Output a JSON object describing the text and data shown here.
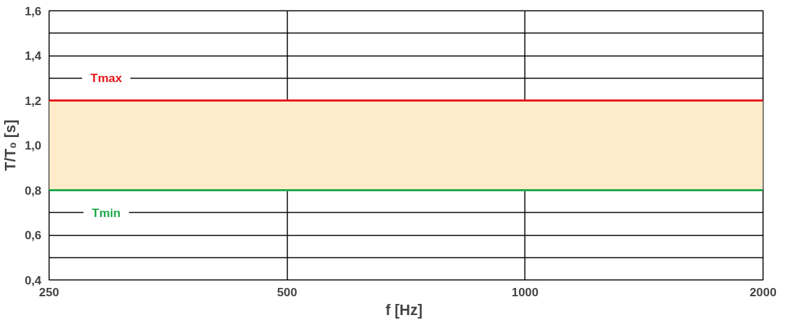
{
  "chart_data": {
    "type": "line",
    "xlabel": "f  [Hz]",
    "ylabel": "T/T₀ [s]",
    "log": "x",
    "grid": true,
    "xlim": [
      250,
      2000
    ],
    "xticks": [
      250,
      500,
      1000,
      2000
    ],
    "ylim": [
      0.4,
      1.6
    ],
    "yticks": [
      {
        "value": 0.4,
        "label": "0,4"
      },
      {
        "value": 0.5,
        "label": null
      },
      {
        "value": 0.6,
        "label": "0,6"
      },
      {
        "value": 0.7,
        "label": null
      },
      {
        "value": 0.8,
        "label": "0,8"
      },
      {
        "value": 0.9,
        "label": null
      },
      {
        "value": 1.0,
        "label": "1,0"
      },
      {
        "value": 1.1,
        "label": null
      },
      {
        "value": 1.2,
        "label": "1,2"
      },
      {
        "value": 1.3,
        "label": null
      },
      {
        "value": 1.4,
        "label": "1,4"
      },
      {
        "value": 1.5,
        "label": null
      },
      {
        "value": 1.6,
        "label": "1,6"
      }
    ],
    "ref_lines": [
      {
        "axis": "y",
        "value": 1.2,
        "label": "Tmax",
        "color": "#e8161b"
      },
      {
        "axis": "y",
        "value": 0.8,
        "label": "Tmin",
        "color": "#1fa94a"
      }
    ],
    "bands": [
      {
        "axis": "y",
        "from": 0.8,
        "to": 1.2,
        "color": "#fdebc9"
      }
    ]
  }
}
